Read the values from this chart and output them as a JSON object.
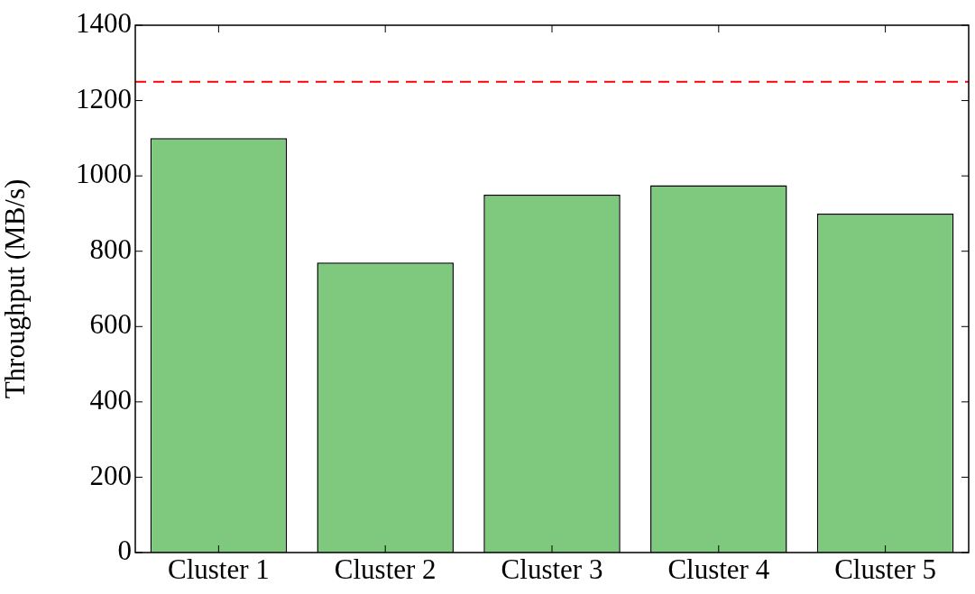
{
  "chart_data": {
    "type": "bar",
    "ylabel": "Throughput (MB/s)",
    "categories": [
      "Cluster 1",
      "Cluster 2",
      "Cluster 3",
      "Cluster 4",
      "Cluster 5"
    ],
    "values": [
      1100,
      770,
      950,
      975,
      900
    ],
    "color": "#7fc97f",
    "ylim": [
      0,
      1400
    ],
    "yticks": [
      0,
      200,
      400,
      600,
      800,
      1000,
      1200,
      1400
    ],
    "grid": false,
    "legend": false,
    "ref_lines": [
      {
        "axis": "y",
        "value": 1250,
        "color": "#ff0000",
        "line_style": "dashed"
      }
    ]
  }
}
